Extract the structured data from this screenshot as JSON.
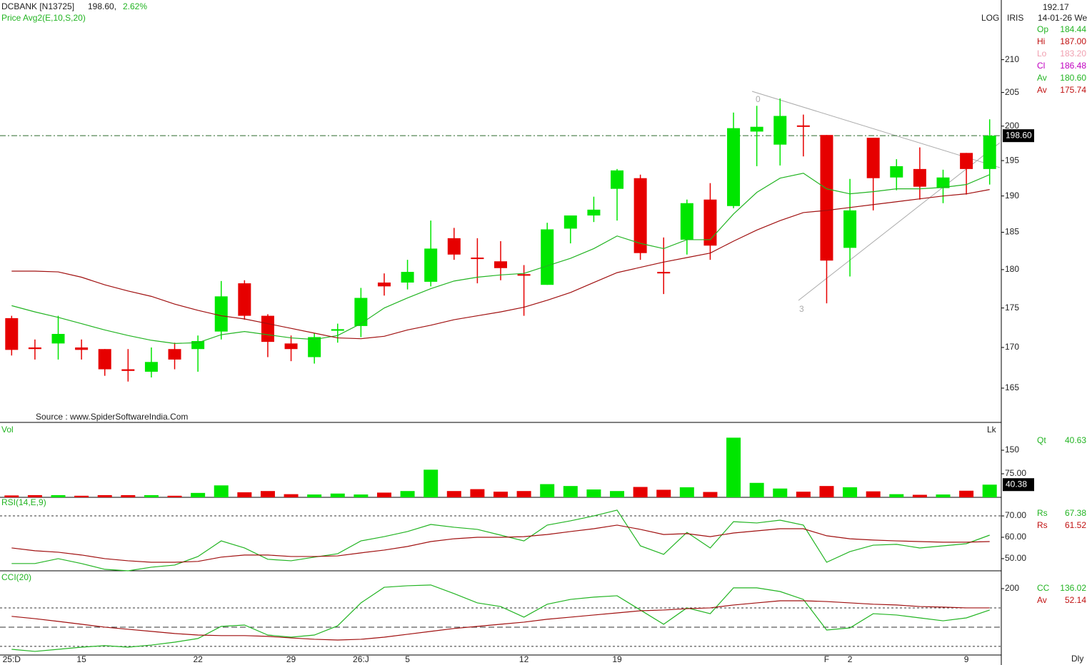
{
  "header": {
    "symbol": "DCBANK [N13725]",
    "price": "198.60,",
    "change": "2.62%",
    "scale": "LOG",
    "brand": "IRIS",
    "cursor_price": "192.17",
    "date": "14-01-26 We",
    "source": "Source : www.SpiderSoftwareIndia.Com",
    "period": "Dly"
  },
  "chart_data": [
    {
      "type": "candlestick",
      "title": "Price Avg2(E,10,S,20)",
      "log": true,
      "categories": [
        "25:D",
        null,
        null,
        "15",
        null,
        null,
        null,
        null,
        "22",
        null,
        null,
        null,
        "29",
        null,
        null,
        "26:J",
        null,
        "5",
        null,
        null,
        null,
        null,
        "12",
        null,
        null,
        null,
        "19",
        null,
        null,
        null,
        null,
        null,
        null,
        null,
        null,
        "F",
        "2",
        null,
        null,
        null,
        null,
        "9",
        null
      ],
      "open": [
        173.7,
        170,
        170.5,
        170,
        169.8,
        167.3,
        167,
        169.8,
        169.8,
        172,
        178.2,
        174,
        170.5,
        168.8,
        172.1,
        172.7,
        178.3,
        178.3,
        178.4,
        184.2,
        181.6,
        181.1,
        179.4,
        178,
        185.5,
        187.3,
        191,
        192.5,
        179.7,
        184,
        189.5,
        188.6,
        199.2,
        197.3,
        200.1,
        198.7,
        182.9,
        198.3,
        192.6,
        193.8,
        191.1,
        196.1,
        193.8
      ],
      "high": [
        174,
        171,
        174,
        171,
        169.8,
        169.8,
        170,
        170.6,
        171.5,
        178.5,
        178.6,
        174.2,
        171.5,
        171.8,
        173,
        177.6,
        179.5,
        181.3,
        186.6,
        185.6,
        184.2,
        183.8,
        180.6,
        186.3,
        187.3,
        189.9,
        193.8,
        193,
        184.3,
        189.5,
        191.8,
        202,
        203,
        204.1,
        201.7,
        198.7,
        192.4,
        198.3,
        195.2,
        196.9,
        193.7,
        196.1,
        201
      ],
      "low": [
        169,
        168.5,
        168.5,
        168.5,
        166.5,
        165.8,
        166.3,
        167.3,
        167,
        171,
        173.5,
        168.8,
        168.3,
        168,
        170.6,
        171.3,
        176.6,
        177.4,
        177.8,
        181.3,
        178.2,
        178.6,
        174,
        178,
        183.5,
        186.4,
        186.6,
        181.3,
        176.8,
        182,
        181.3,
        188.3,
        194.2,
        194.3,
        195.6,
        175.6,
        179.1,
        188,
        190.8,
        189.5,
        189,
        190.2,
        191.6
      ],
      "close": [
        169.7,
        169.8,
        171.7,
        169.7,
        167.3,
        167.1,
        168.2,
        168.5,
        170.8,
        176.5,
        174,
        170.7,
        169.8,
        171.3,
        172.3,
        176.3,
        177.8,
        179.7,
        182.8,
        182,
        181.4,
        180.2,
        179.2,
        185.4,
        187.3,
        188.1,
        193.6,
        182.2,
        179.5,
        189,
        183.2,
        199.7,
        199.9,
        201.5,
        199.9,
        181.2,
        188,
        192.5,
        194.2,
        191.3,
        192.6,
        193.8,
        198.6
      ],
      "last_label": "198.60",
      "up_color": "#00e600",
      "down_color": "#e60000",
      "series": [
        {
          "color": "#22b422",
          "values": [
            175.3,
            174.5,
            173.8,
            173,
            172.2,
            171.5,
            170.9,
            170.5,
            170.6,
            171.6,
            172,
            171.6,
            171.2,
            171,
            171.5,
            173,
            175,
            176.3,
            177.5,
            178.5,
            179,
            179.3,
            179.5,
            180.5,
            181.5,
            182.8,
            184.5,
            183.5,
            182.8,
            184,
            184,
            187.5,
            190.5,
            192.5,
            193.2,
            191,
            190.3,
            190.6,
            191,
            191,
            191.2,
            191.6,
            193
          ]
        },
        {
          "color": "#a01010",
          "values": [
            179.8,
            179.8,
            179.7,
            179,
            178,
            177.2,
            176.5,
            175.5,
            174.7,
            174,
            173.6,
            173,
            172.4,
            171.8,
            171.2,
            171.1,
            171.4,
            172.2,
            172.8,
            173.5,
            174,
            174.5,
            175.1,
            176,
            177,
            178.3,
            179.6,
            180.3,
            181,
            181.6,
            182.2,
            183.8,
            185.3,
            186.6,
            187.7,
            188,
            188.4,
            188.8,
            189.2,
            189.6,
            190,
            190.3,
            190.9
          ]
        }
      ],
      "ylim": [
        160.9,
        217.8
      ],
      "yticks": [
        165,
        170,
        175,
        180,
        185,
        190,
        195,
        200,
        205,
        210
      ],
      "readout": [
        {
          "label": "Op",
          "value": "184.44",
          "color": "#22b422"
        },
        {
          "label": "Hi",
          "value": "187.00",
          "color": "#c01010"
        },
        {
          "label": "Lo",
          "value": "183.20",
          "color": "#f0a0b0"
        },
        {
          "label": "Cl",
          "value": "186.48",
          "color": "#c000c0"
        },
        {
          "label": "Av",
          "value": "180.60",
          "color": "#22b422"
        },
        {
          "label": "Av",
          "value": "175.74",
          "color": "#c01010"
        }
      ]
    },
    {
      "type": "bar",
      "title": "Vol",
      "unit": "Lk",
      "values": [
        6,
        7,
        7,
        5,
        7,
        7,
        7,
        5,
        14,
        38,
        16,
        20,
        10,
        9,
        12,
        9,
        15,
        20,
        88,
        20,
        26,
        18,
        20,
        42,
        36,
        25,
        20,
        33,
        24,
        32,
        17,
        190,
        46,
        28,
        18,
        36,
        32,
        19,
        10,
        8,
        9,
        21,
        40.38
      ],
      "last_label": "40.38",
      "ylim": [
        0,
        225
      ],
      "yticks": [
        150,
        {
          "value": 75,
          "label": "75.00"
        }
      ],
      "readout": [
        {
          "label": "Qt",
          "value": "40.63",
          "color": "#22b422"
        }
      ]
    },
    {
      "type": "line",
      "title": "RSI(14,E,9)",
      "ylim": [
        44.3,
        77.7
      ],
      "yticks": [
        {
          "value": 70,
          "label": "70.00"
        },
        {
          "value": 60,
          "label": "60.00"
        },
        {
          "value": 50,
          "label": "50.00"
        }
      ],
      "hlines": [
        70
      ],
      "series": [
        {
          "color": "#22b422",
          "values": [
            47.7,
            47.7,
            50,
            47.7,
            45,
            44.3,
            46,
            47,
            51,
            58.3,
            55,
            49.7,
            49,
            50.7,
            52.3,
            58.3,
            60.3,
            62.7,
            66,
            64.7,
            63.7,
            61,
            58.3,
            65.7,
            67.7,
            70,
            72.7,
            56,
            52,
            62.3,
            55,
            67.3,
            66.7,
            68,
            65.7,
            48.3,
            53.3,
            56.3,
            56.7,
            55,
            56,
            57,
            61
          ]
        },
        {
          "color": "#a01010",
          "values": [
            55,
            53.7,
            53,
            51.7,
            50,
            49,
            48.3,
            48.3,
            48.7,
            50.7,
            51.7,
            51.7,
            51,
            51,
            51.3,
            52.7,
            54,
            55.7,
            58,
            59.3,
            60,
            60,
            60.3,
            61.3,
            62.7,
            64,
            65.7,
            63.7,
            61.3,
            61.7,
            60.3,
            62,
            63,
            64,
            64,
            60.7,
            59.3,
            58.7,
            58.3,
            58,
            57.7,
            57.7,
            58
          ]
        }
      ],
      "readout": [
        {
          "label": "Rs",
          "value": "67.38",
          "color": "#22b422"
        },
        {
          "label": "Rs",
          "value": "61.52",
          "color": "#c01010"
        }
      ]
    },
    {
      "type": "line",
      "title": "CCI(20)",
      "ylim": [
        -141,
        274
      ],
      "yticks": [
        200
      ],
      "hlines": [
        100,
        0,
        -100
      ],
      "series": [
        {
          "color": "#22b422",
          "values": [
            -115,
            -126,
            -115,
            -104,
            -96,
            -104,
            -93,
            -78,
            -59,
            4,
            11,
            -41,
            -52,
            -41,
            7,
            126,
            207,
            215,
            219,
            174,
            126,
            107,
            52,
            119,
            144,
            156,
            163,
            89,
            15,
            100,
            70,
            204,
            204,
            185,
            144,
            -15,
            -4,
            70,
            63,
            48,
            33,
            48,
            89
          ]
        },
        {
          "color": "#a01010",
          "values": [
            56,
            44,
            30,
            15,
            0,
            -11,
            -22,
            -33,
            -41,
            -44,
            -44,
            -48,
            -56,
            -63,
            -67,
            -63,
            -52,
            -37,
            -22,
            -7,
            4,
            15,
            26,
            41,
            52,
            63,
            74,
            85,
            89,
            96,
            100,
            115,
            126,
            137,
            137,
            133,
            126,
            119,
            115,
            107,
            104,
            100,
            100
          ]
        }
      ],
      "readout": [
        {
          "label": "CC",
          "value": "136.02",
          "color": "#22b422"
        },
        {
          "label": "Av",
          "value": "52.14",
          "color": "#c01010"
        }
      ]
    }
  ]
}
